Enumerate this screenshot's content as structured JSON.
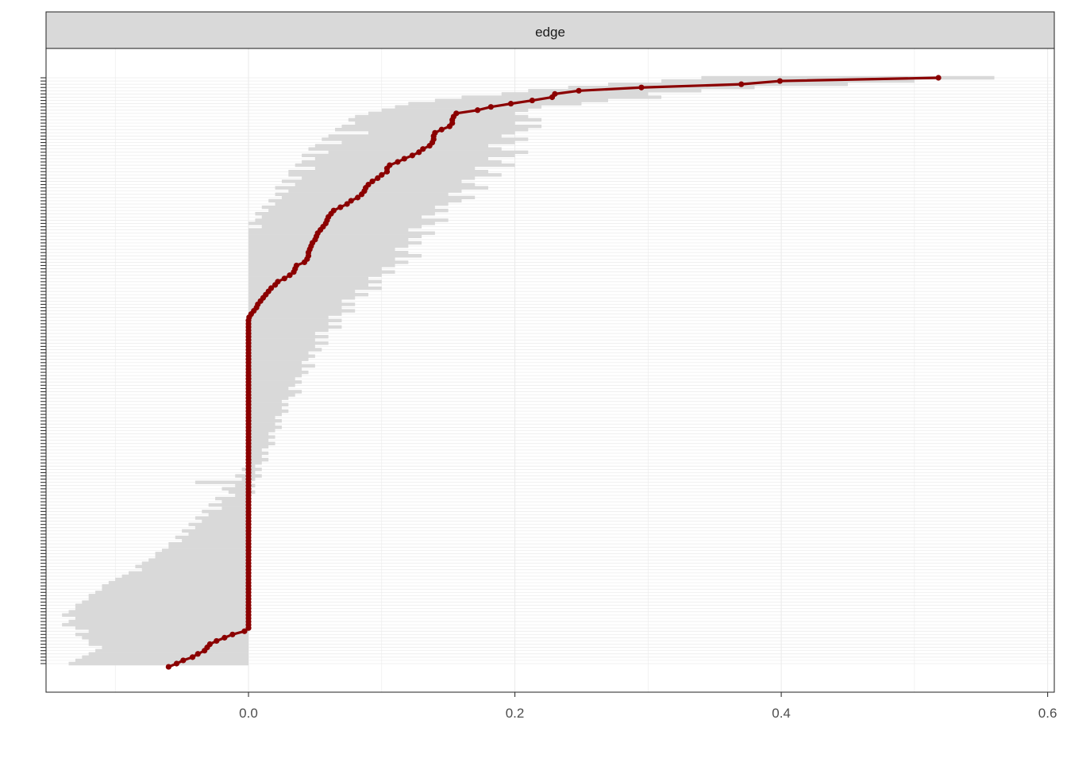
{
  "facet": {
    "label": "edge"
  },
  "chart_data": {
    "type": "line",
    "title": "",
    "xlabel": "",
    "ylabel": "",
    "xlim": [
      -0.152,
      0.605
    ],
    "x_ticks": [
      0.0,
      0.2,
      0.4,
      0.6
    ],
    "x_tick_labels": [
      "0.0",
      "0.2",
      "0.4",
      "0.6"
    ],
    "y_tick_labels_shown": false,
    "grid": true,
    "legend": "none",
    "colors": {
      "line": "#8B0000",
      "band": "#d9d9d9",
      "band_stroke": "#e3e3e3",
      "grid": "#ebebeb",
      "strip": "#d9d9d9",
      "panel_border": "#333333"
    },
    "n_nodes": 182,
    "series": [
      {
        "description": "sorted edge values per node (dark red line with points)",
        "values": [
          0.518,
          0.399,
          0.37,
          0.295,
          0.248,
          0.23,
          0.228,
          0.213,
          0.197,
          0.182,
          0.172,
          0.156,
          0.154,
          0.153,
          0.153,
          0.151,
          0.145,
          0.14,
          0.139,
          0.139,
          0.138,
          0.136,
          0.131,
          0.128,
          0.123,
          0.117,
          0.112,
          0.106,
          0.104,
          0.104,
          0.1,
          0.097,
          0.093,
          0.09,
          0.088,
          0.087,
          0.085,
          0.082,
          0.077,
          0.074,
          0.069,
          0.064,
          0.062,
          0.06,
          0.059,
          0.058,
          0.056,
          0.054,
          0.052,
          0.051,
          0.05,
          0.048,
          0.047,
          0.046,
          0.045,
          0.045,
          0.044,
          0.042,
          0.036,
          0.035,
          0.034,
          0.031,
          0.027,
          0.022,
          0.02,
          0.017,
          0.015,
          0.013,
          0.011,
          0.009,
          0.007,
          0.006,
          0.004,
          0.002,
          0.0005,
          0.0,
          0.0,
          0.0,
          0.0,
          0.0,
          0.0,
          0.0,
          0.0,
          0.0,
          0.0,
          0.0,
          0.0,
          0.0,
          0.0,
          0.0,
          0.0,
          0.0,
          0.0,
          0.0,
          0.0,
          0.0,
          0.0,
          0.0,
          0.0,
          0.0,
          0.0,
          0.0,
          0.0,
          0.0,
          0.0,
          0.0,
          0.0,
          0.0,
          0.0,
          0.0,
          0.0,
          0.0,
          0.0,
          0.0,
          0.0,
          0.0,
          0.0,
          0.0,
          0.0,
          0.0,
          0.0,
          0.0,
          0.0,
          0.0,
          0.0,
          0.0,
          0.0,
          0.0,
          0.0,
          0.0,
          0.0,
          0.0,
          0.0,
          0.0,
          0.0,
          0.0,
          0.0,
          0.0,
          0.0,
          0.0,
          0.0,
          0.0,
          0.0,
          0.0,
          0.0,
          0.0,
          0.0,
          0.0,
          0.0,
          0.0,
          0.0,
          0.0,
          0.0,
          0.0,
          0.0,
          0.0,
          0.0,
          0.0,
          0.0,
          0.0,
          0.0,
          0.0,
          0.0,
          0.0,
          0.0,
          0.0,
          0.0,
          0.0,
          0.0,
          0.0,
          0.0,
          -0.003,
          -0.012,
          -0.018,
          -0.024,
          -0.029,
          -0.031,
          -0.033,
          -0.038,
          -0.042,
          -0.049,
          -0.054,
          -0.06
        ]
      },
      {
        "description": "bootstrap interval lower bound (grey band)",
        "values": [
          0.34,
          0.31,
          0.27,
          0.24,
          0.21,
          0.19,
          0.16,
          0.14,
          0.12,
          0.11,
          0.1,
          0.09,
          0.08,
          0.075,
          0.08,
          0.07,
          0.065,
          0.09,
          0.06,
          0.055,
          0.07,
          0.05,
          0.045,
          0.06,
          0.04,
          0.05,
          0.04,
          0.035,
          0.05,
          0.03,
          0.03,
          0.04,
          0.025,
          0.035,
          0.02,
          0.03,
          0.02,
          0.025,
          0.015,
          0.02,
          0.01,
          0.015,
          0.005,
          0.01,
          0.005,
          0.0,
          0.01,
          0.0,
          0.0,
          0.0,
          0.0,
          0.0,
          0.0,
          0.0,
          0.0,
          0.0,
          0.0,
          0.0,
          0.0,
          0.0,
          0.0,
          0.0,
          0.0,
          0.0,
          0.0,
          0.0,
          0.0,
          0.0,
          0.0,
          0.0,
          0.0,
          0.0,
          0.0,
          0.0,
          0.0,
          0.0,
          0.0,
          0.0,
          0.0,
          0.0,
          0.0,
          0.0,
          0.0,
          0.0,
          0.0,
          0.0,
          0.0,
          0.0,
          0.0,
          0.0,
          0.0,
          0.0,
          0.0,
          0.0,
          0.0,
          0.0,
          0.0,
          0.0,
          0.0,
          0.0,
          0.0,
          0.0,
          0.0,
          0.0,
          0.0,
          0.0,
          0.0,
          0.0,
          0.0,
          0.0,
          0.0,
          0.0,
          0.0,
          0.0,
          0.0,
          0.0,
          0.0,
          0.0,
          0.0,
          0.0,
          0.0,
          -0.005,
          0.0,
          -0.01,
          -0.005,
          -0.04,
          -0.01,
          -0.02,
          -0.015,
          -0.01,
          -0.025,
          -0.02,
          -0.03,
          -0.02,
          -0.035,
          -0.03,
          -0.04,
          -0.035,
          -0.045,
          -0.04,
          -0.05,
          -0.045,
          -0.055,
          -0.05,
          -0.06,
          -0.06,
          -0.065,
          -0.07,
          -0.07,
          -0.075,
          -0.08,
          -0.085,
          -0.08,
          -0.09,
          -0.095,
          -0.1,
          -0.105,
          -0.11,
          -0.11,
          -0.115,
          -0.12,
          -0.12,
          -0.125,
          -0.13,
          -0.13,
          -0.135,
          -0.14,
          -0.13,
          -0.135,
          -0.14,
          -0.13,
          -0.12,
          -0.13,
          -0.125,
          -0.12,
          -0.12,
          -0.11,
          -0.115,
          -0.12,
          -0.125,
          -0.13,
          -0.135
        ]
      },
      {
        "description": "bootstrap interval upper bound (grey band)",
        "values": [
          0.56,
          0.5,
          0.45,
          0.38,
          0.34,
          0.3,
          0.31,
          0.27,
          0.25,
          0.22,
          0.21,
          0.2,
          0.21,
          0.22,
          0.2,
          0.22,
          0.21,
          0.2,
          0.19,
          0.21,
          0.2,
          0.18,
          0.19,
          0.21,
          0.2,
          0.18,
          0.19,
          0.2,
          0.17,
          0.18,
          0.19,
          0.17,
          0.16,
          0.17,
          0.18,
          0.16,
          0.15,
          0.17,
          0.16,
          0.15,
          0.14,
          0.15,
          0.14,
          0.13,
          0.15,
          0.14,
          0.13,
          0.12,
          0.14,
          0.13,
          0.12,
          0.13,
          0.12,
          0.11,
          0.12,
          0.13,
          0.11,
          0.12,
          0.11,
          0.1,
          0.11,
          0.1,
          0.09,
          0.1,
          0.09,
          0.1,
          0.08,
          0.09,
          0.08,
          0.07,
          0.08,
          0.07,
          0.08,
          0.07,
          0.06,
          0.07,
          0.06,
          0.07,
          0.06,
          0.05,
          0.06,
          0.05,
          0.06,
          0.05,
          0.055,
          0.045,
          0.05,
          0.045,
          0.04,
          0.05,
          0.04,
          0.045,
          0.04,
          0.035,
          0.04,
          0.035,
          0.03,
          0.04,
          0.035,
          0.03,
          0.025,
          0.03,
          0.025,
          0.03,
          0.025,
          0.02,
          0.025,
          0.02,
          0.025,
          0.02,
          0.015,
          0.02,
          0.015,
          0.02,
          0.015,
          0.01,
          0.015,
          0.01,
          0.015,
          0.01,
          0.005,
          0.01,
          0.005,
          0.01,
          0.005,
          0.0,
          0.005,
          0.0,
          0.005,
          0.0,
          0.0,
          0.0,
          0.0,
          0.0,
          0.0,
          0.0,
          0.0,
          0.0,
          0.0,
          0.0,
          0.0,
          0.0,
          0.0,
          0.0,
          0.0,
          0.0,
          0.0,
          0.0,
          0.0,
          0.0,
          0.0,
          0.0,
          0.0,
          0.0,
          0.0,
          0.0,
          0.0,
          0.0,
          0.0,
          0.0,
          0.0,
          0.0,
          0.0,
          0.0,
          0.0,
          0.0,
          0.0,
          0.0,
          0.0,
          0.0,
          0.0,
          0.0,
          0.0,
          0.0,
          0.0,
          0.0,
          0.0,
          0.0,
          0.0,
          0.0,
          0.0,
          0.0,
          0.0
        ]
      }
    ]
  }
}
